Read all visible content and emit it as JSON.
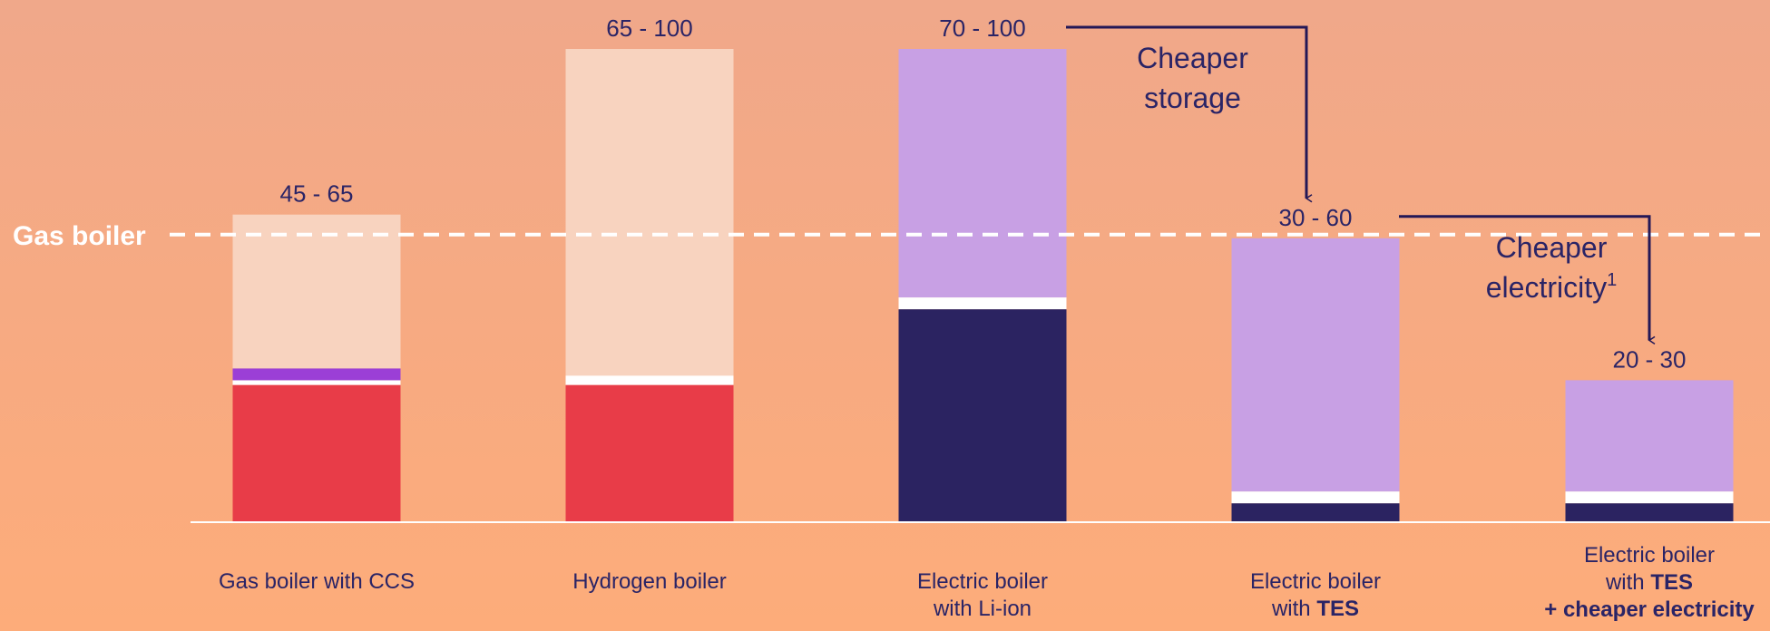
{
  "chart_data": {
    "type": "bar",
    "reference_line": {
      "label": "Gas boiler",
      "value": 60
    },
    "categories": [
      {
        "lines": [
          [
            {
              "t": "Gas boiler with CCS",
              "b": false
            }
          ]
        ]
      },
      {
        "lines": [
          [
            {
              "t": "Hydrogen boiler",
              "b": false
            }
          ]
        ]
      },
      {
        "lines": [
          [
            {
              "t": "Electric boiler",
              "b": false
            }
          ],
          [
            {
              "t": "with Li-ion",
              "b": false
            }
          ]
        ]
      },
      {
        "lines": [
          [
            {
              "t": "Electric boiler",
              "b": false
            }
          ],
          [
            {
              "t": "with ",
              "b": false
            },
            {
              "t": "TES",
              "b": true
            }
          ]
        ]
      },
      {
        "lines": [
          [
            {
              "t": "Electric boiler",
              "b": false
            }
          ],
          [
            {
              "t": "with ",
              "b": false
            },
            {
              "t": "TES",
              "b": true
            }
          ],
          [
            {
              "t": "+ cheaper electricity",
              "b": true
            }
          ]
        ]
      }
    ],
    "range_labels": [
      "45 - 65",
      "65 - 100",
      "70 - 100",
      "30 - 60",
      "20 - 30"
    ],
    "ranges": [
      [
        45,
        65
      ],
      [
        65,
        100
      ],
      [
        70,
        100
      ],
      [
        30,
        60
      ],
      [
        20,
        30
      ]
    ],
    "bars": [
      {
        "segments": [
          {
            "value": 29,
            "color": "#e83c48"
          },
          {
            "value": 1,
            "color": "#ffffff"
          },
          {
            "value": 2.5,
            "color": "#9b3fd6"
          },
          {
            "value": 32.5,
            "color": "#f8d3bf"
          }
        ]
      },
      {
        "segments": [
          {
            "value": 29,
            "color": "#e83c48"
          },
          {
            "value": 2,
            "color": "#ffffff"
          },
          {
            "value": 69,
            "color": "#f8d3bf"
          }
        ]
      },
      {
        "segments": [
          {
            "value": 45,
            "color": "#2b2361"
          },
          {
            "value": 2.5,
            "color": "#ffffff"
          },
          {
            "value": 52.5,
            "color": "#c8a0e4"
          }
        ]
      },
      {
        "segments": [
          {
            "value": 4,
            "color": "#2b2361"
          },
          {
            "value": 2.5,
            "color": "#ffffff"
          },
          {
            "value": 53.5,
            "color": "#c8a0e4"
          }
        ]
      },
      {
        "segments": [
          {
            "value": 4,
            "color": "#2b2361"
          },
          {
            "value": 2.5,
            "color": "#ffffff"
          },
          {
            "value": 23.5,
            "color": "#c8a0e4"
          }
        ]
      }
    ],
    "annotations": [
      {
        "lines": [
          "Cheaper",
          "storage"
        ],
        "from_bar": 2,
        "to_bar": 3
      },
      {
        "lines": [
          "Cheaper",
          "electricity"
        ],
        "superscript": "1",
        "from_bar": 3,
        "to_bar": 4
      }
    ],
    "ylim": [
      0,
      100
    ],
    "grid": false,
    "colors": {
      "background_top": "#f0a88a",
      "background_bottom": "#fdac7a",
      "text": "#2a2466",
      "arrow": "#231857",
      "baseline": "#ffffff"
    }
  }
}
